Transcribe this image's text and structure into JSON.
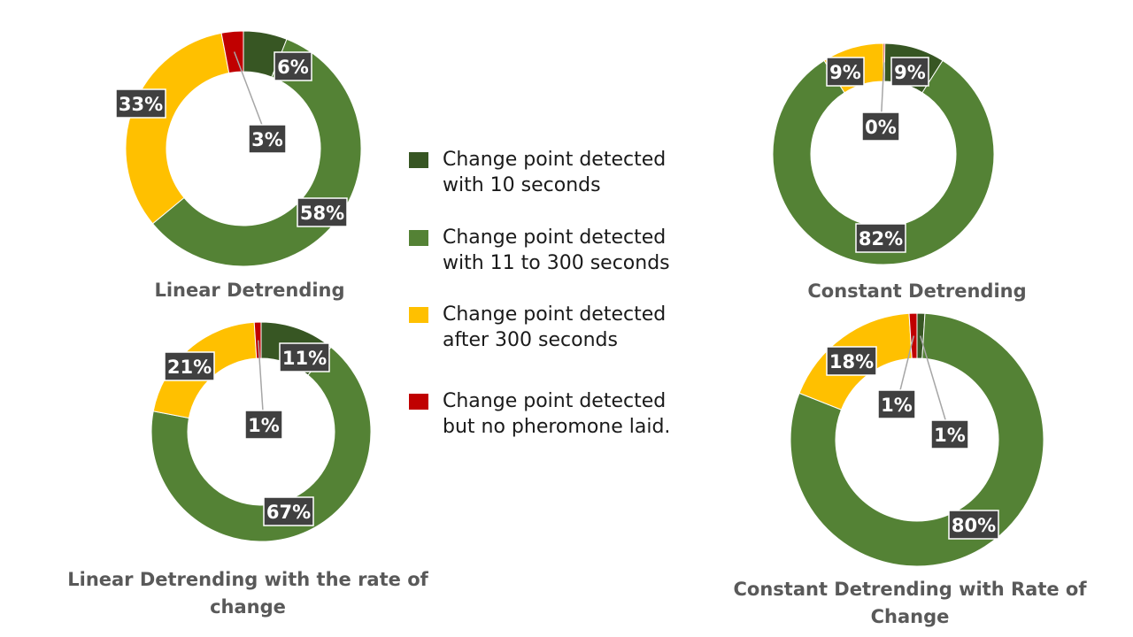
{
  "chart_data": [
    {
      "type": "pie",
      "title": "Linear Detrending",
      "categories": [
        "Change point detected with 10 seconds",
        "Change point detected with 11 to 300 seconds",
        "Change point detected after 300 seconds",
        "Change point detected but no pheromone laid."
      ],
      "values": [
        6,
        58,
        33,
        3
      ],
      "labels": [
        "6%",
        "58%",
        "33%",
        "3%"
      ]
    },
    {
      "type": "pie",
      "title": "Constant Detrending",
      "categories": [
        "Change point detected with 10 seconds",
        "Change point detected with 11 to 300 seconds",
        "Change point detected after 300 seconds",
        "Change point detected but no pheromone laid."
      ],
      "values": [
        9,
        82,
        9,
        0
      ],
      "labels": [
        "9%",
        "82%",
        "9%",
        "0%"
      ]
    },
    {
      "type": "pie",
      "title": "Linear Detrending with  the rate of change",
      "categories": [
        "Change point detected with 10 seconds",
        "Change point detected with 11 to 300 seconds",
        "Change point detected after 300 seconds",
        "Change point detected but no pheromone laid."
      ],
      "values": [
        11,
        67,
        21,
        1
      ],
      "labels": [
        "11%",
        "67%",
        "21%",
        "1%"
      ]
    },
    {
      "type": "pie",
      "title": "Constant Detrending with Rate of Change",
      "categories": [
        "Change point detected with 10 seconds",
        "Change point detected with 11 to 300 seconds",
        "Change point detected after 300 seconds",
        "Change point detected but no pheromone laid."
      ],
      "values": [
        1,
        80,
        18,
        1
      ],
      "labels": [
        "1%",
        "80%",
        "18%",
        "1%"
      ]
    }
  ],
  "legend": {
    "placement": "center",
    "items": [
      {
        "label": "Change point detected\nwith 10 seconds",
        "color": "#375623"
      },
      {
        "label": "Change point detected\nwith 11 to 300 seconds",
        "color": "#548235"
      },
      {
        "label": "Change point detected\nafter 300 seconds",
        "color": "#ffc000"
      },
      {
        "label": "Change point detected\nbut no pheromone laid.",
        "color": "#c00000"
      }
    ]
  },
  "colors": {
    "series": [
      "#375623",
      "#548235",
      "#ffc000",
      "#c00000"
    ],
    "label_box": "#404040",
    "title": "#595959"
  }
}
